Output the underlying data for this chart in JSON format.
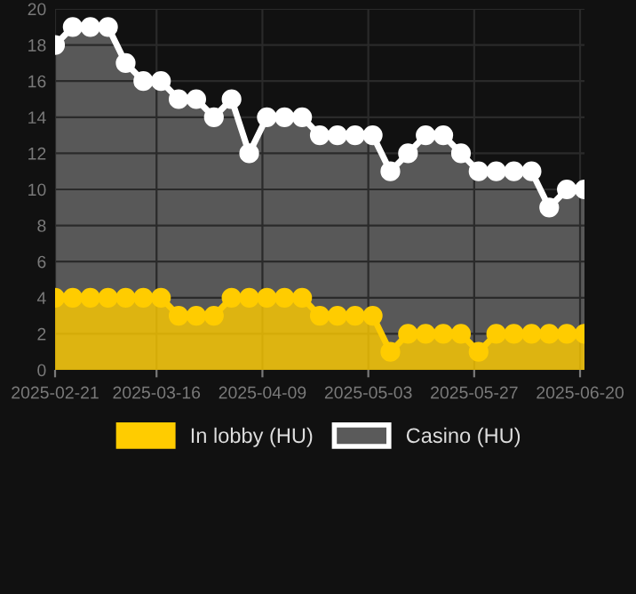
{
  "chart_data": {
    "type": "area",
    "x": [
      "2025-02-21",
      "2025-02-25",
      "2025-03-01",
      "2025-03-05",
      "2025-03-09",
      "2025-03-13",
      "2025-03-17",
      "2025-03-21",
      "2025-03-25",
      "2025-03-29",
      "2025-04-02",
      "2025-04-06",
      "2025-04-10",
      "2025-04-14",
      "2025-04-18",
      "2025-04-22",
      "2025-04-26",
      "2025-04-30",
      "2025-05-04",
      "2025-05-08",
      "2025-05-12",
      "2025-05-16",
      "2025-05-20",
      "2025-05-24",
      "2025-05-28",
      "2025-06-01",
      "2025-06-05",
      "2025-06-09",
      "2025-06-13",
      "2025-06-17",
      "2025-06-21"
    ],
    "series": [
      {
        "name": "In lobby (HU)",
        "color": "#ffcc00",
        "values": [
          4,
          4,
          4,
          4,
          4,
          4,
          4,
          3,
          3,
          3,
          4,
          4,
          4,
          4,
          4,
          3,
          3,
          3,
          3,
          1,
          2,
          2,
          2,
          2,
          1,
          2,
          2,
          2,
          2,
          2,
          2
        ]
      },
      {
        "name": "Casino (HU)",
        "color": "#ffffff",
        "values": [
          18,
          19,
          19,
          19,
          17,
          16,
          16,
          15,
          15,
          14,
          15,
          12,
          14,
          14,
          14,
          13,
          13,
          13,
          13,
          11,
          12,
          13,
          13,
          12,
          11,
          11,
          11,
          11,
          9,
          10,
          10
        ]
      }
    ],
    "xlim": [
      "2025-02-21",
      "2025-06-21"
    ],
    "xticks": [
      "2025-02-21",
      "2025-03-16",
      "2025-04-09",
      "2025-05-03",
      "2025-05-27",
      "2025-06-20"
    ],
    "ylim": [
      0,
      20
    ],
    "yticks": [
      0,
      2,
      4,
      6,
      8,
      10,
      12,
      14,
      16,
      18,
      20
    ],
    "grid": true,
    "legend": "bottom",
    "marker": "circle",
    "line_style": "solid"
  }
}
